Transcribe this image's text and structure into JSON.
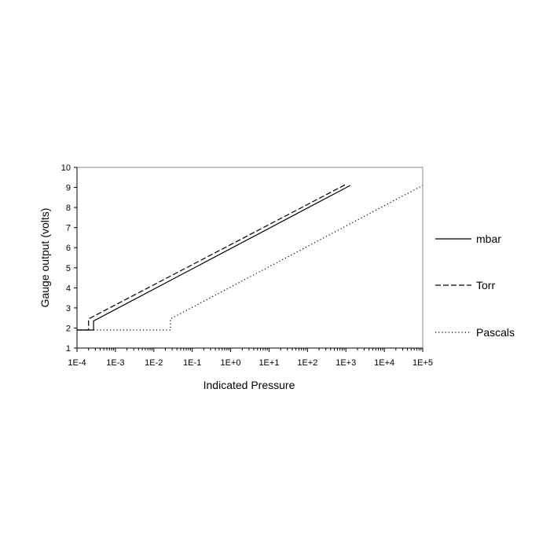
{
  "chart_data": {
    "type": "line",
    "title": "",
    "xlabel": "Indicated Pressure",
    "ylabel": "Gauge output (volts)",
    "x_scale": "log",
    "x_ticks": [
      0.0001,
      0.001,
      0.01,
      0.1,
      1,
      10,
      100,
      1000,
      10000,
      100000
    ],
    "x_tick_labels": [
      "1E-4",
      "1E-3",
      "1E-2",
      "1E-1",
      "1E+0",
      "1E+1",
      "1E+2",
      "1E+3",
      "1E+4",
      "1E+5"
    ],
    "xlim": [
      0.0001,
      100000
    ],
    "y_ticks": [
      1,
      2,
      3,
      4,
      5,
      6,
      7,
      8,
      9,
      10
    ],
    "y_tick_labels": [
      "1",
      "2",
      "3",
      "4",
      "5",
      "6",
      "7",
      "8",
      "9",
      "10"
    ],
    "ylim": [
      1,
      10
    ],
    "grid": false,
    "legend_position": "right",
    "series": [
      {
        "name": "mbar",
        "style": "solid",
        "color": "#000000",
        "points": [
          [
            0.0001,
            1.9
          ],
          [
            0.00027,
            1.9
          ],
          [
            0.00027,
            2.35
          ],
          [
            1300,
            9.1
          ]
        ]
      },
      {
        "name": "Torr",
        "style": "dashed",
        "color": "#000000",
        "points": [
          [
            0.0001,
            1.9
          ],
          [
            0.0002,
            1.9
          ],
          [
            0.0002,
            2.45
          ],
          [
            1000,
            9.15
          ]
        ]
      },
      {
        "name": "Pascals",
        "style": "dotted",
        "color": "#000000",
        "points": [
          [
            0.0001,
            1.9
          ],
          [
            0.027,
            1.9
          ],
          [
            0.027,
            2.45
          ],
          [
            100000,
            9.1
          ]
        ]
      }
    ]
  }
}
